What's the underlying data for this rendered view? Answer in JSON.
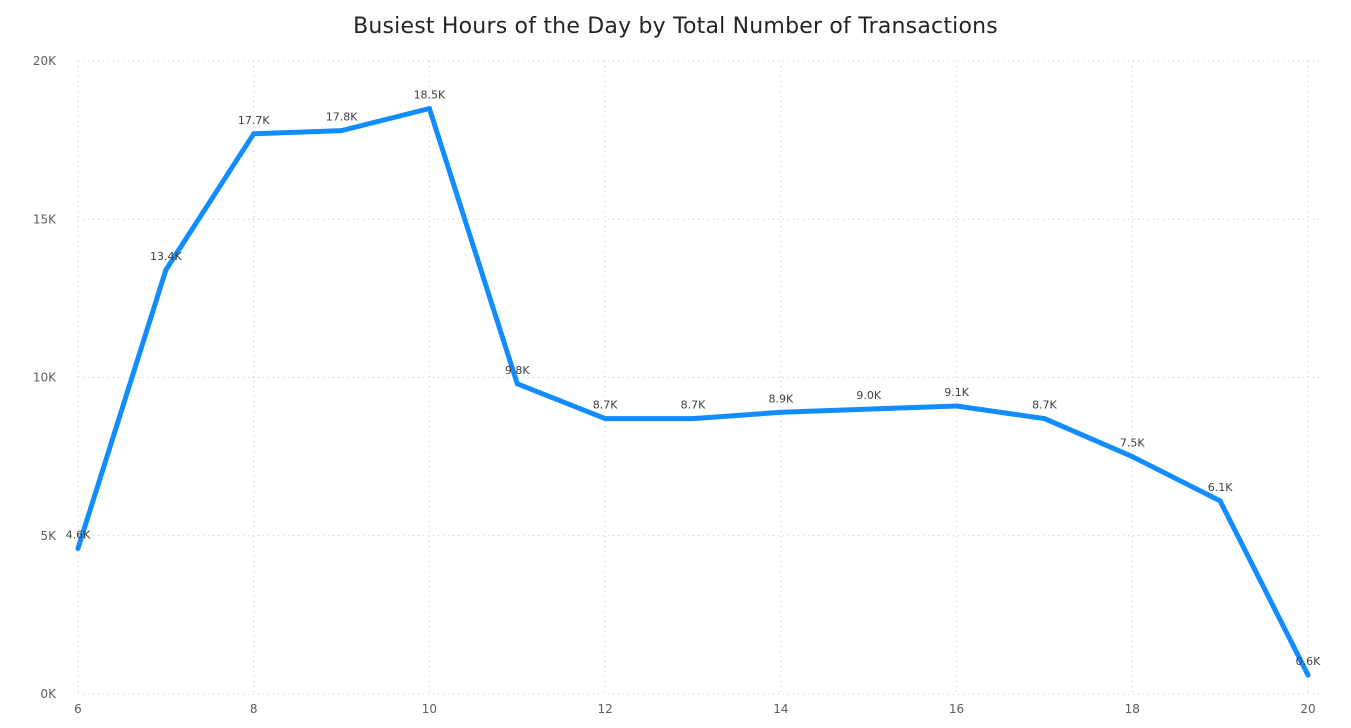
{
  "chart_data": {
    "type": "line",
    "title": "Busiest Hours of the Day by Total Number of Transactions",
    "xlabel": "",
    "ylabel": "",
    "x": [
      6,
      7,
      8,
      9,
      10,
      11,
      12,
      13,
      14,
      15,
      16,
      17,
      18,
      19,
      20
    ],
    "series": [
      {
        "values": [
          4600,
          13400,
          17700,
          17800,
          18500,
          9800,
          8700,
          8700,
          8900,
          9000,
          9100,
          8700,
          7500,
          6100,
          600
        ],
        "labels": [
          "4.6K",
          "13.4K",
          "17.7K",
          "17.8K",
          "18.5K",
          "9.8K",
          "8.7K",
          "8.7K",
          "8.9K",
          "9.0K",
          "9.1K",
          "8.7K",
          "7.5K",
          "6.1K",
          "0.6K"
        ],
        "color": "#118DFF"
      }
    ],
    "xlim": [
      6,
      20
    ],
    "ylim": [
      0,
      20000
    ],
    "xticks": [
      6,
      8,
      10,
      12,
      14,
      16,
      18,
      20
    ],
    "xtick_labels": [
      "6",
      "8",
      "10",
      "12",
      "14",
      "16",
      "18",
      "20"
    ],
    "yticks": [
      0,
      5000,
      10000,
      15000,
      20000
    ],
    "ytick_labels": [
      "0K",
      "5K",
      "10K",
      "15K",
      "20K"
    ],
    "grid": true,
    "legend": "none"
  }
}
